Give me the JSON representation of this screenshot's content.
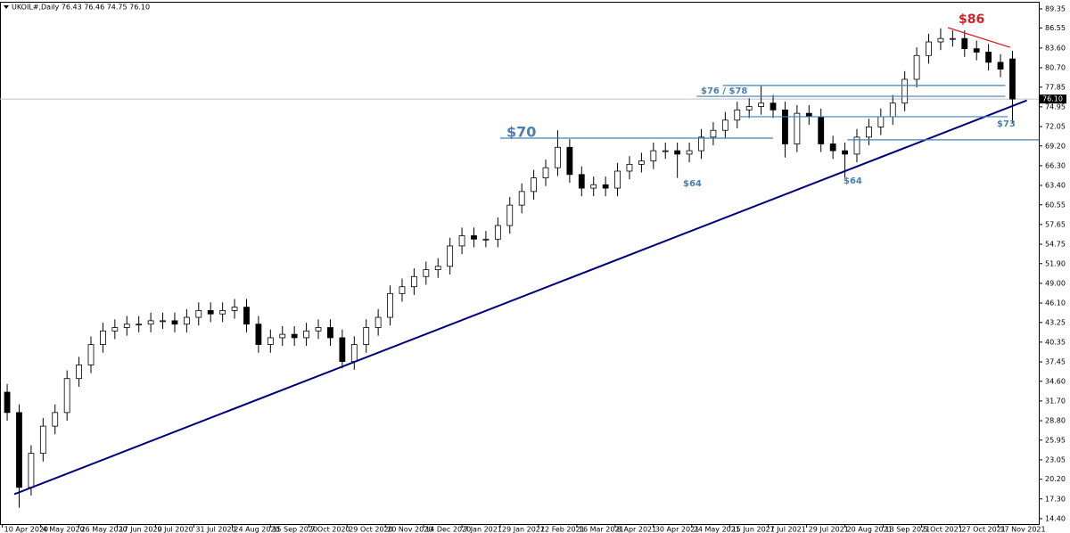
{
  "chart_data": {
    "type": "candlestick",
    "title": "UKOIL#,Daily  76.43 76.46 74.75 76.10",
    "xlim": [
      -1,
      433
    ],
    "ylim": [
      13.6,
      90.4
    ],
    "xticks": [
      {
        "value": 0,
        "label": "10 Apr 2020"
      },
      {
        "value": 16,
        "label": "4 May 2020"
      },
      {
        "value": 32,
        "label": "26 May 2020"
      },
      {
        "value": 48,
        "label": "17 Jun 2020"
      },
      {
        "value": 64,
        "label": "9 Jul 2020"
      },
      {
        "value": 80,
        "label": "31 Jul 2020"
      },
      {
        "value": 96,
        "label": "24 Aug 2020"
      },
      {
        "value": 112,
        "label": "15 Sep 2020"
      },
      {
        "value": 128,
        "label": "7 Oct 2020"
      },
      {
        "value": 144,
        "label": "29 Oct 2020"
      },
      {
        "value": 160,
        "label": "20 Nov 2020"
      },
      {
        "value": 176,
        "label": "14 Dec 2020"
      },
      {
        "value": 192,
        "label": "7 Jan 2021"
      },
      {
        "value": 208,
        "label": "29 Jan 2021"
      },
      {
        "value": 224,
        "label": "22 Feb 2021"
      },
      {
        "value": 240,
        "label": "16 Mar 2021"
      },
      {
        "value": 256,
        "label": "8 Apr 2021"
      },
      {
        "value": 272,
        "label": "30 Apr 2021"
      },
      {
        "value": 288,
        "label": "24 May 2021"
      },
      {
        "value": 304,
        "label": "15 Jun 2021"
      },
      {
        "value": 320,
        "label": "7 Jul 2021"
      },
      {
        "value": 336,
        "label": "29 Jul 2021"
      },
      {
        "value": 352,
        "label": "20 Aug 2021"
      },
      {
        "value": 368,
        "label": "13 Sep 2021"
      },
      {
        "value": 384,
        "label": "5 Oct 2021"
      },
      {
        "value": 400,
        "label": "27 Oct 2021"
      },
      {
        "value": 416,
        "label": "17 Nov 2021"
      }
    ],
    "yticks": [
      {
        "value": 89.35,
        "label": "89.35"
      },
      {
        "value": 86.55,
        "label": "86.55"
      },
      {
        "value": 83.6,
        "label": "83.60"
      },
      {
        "value": 80.7,
        "label": "80.70"
      },
      {
        "value": 77.85,
        "label": "77.85"
      },
      {
        "value": 74.95,
        "label": "74.95"
      },
      {
        "value": 72.05,
        "label": "72.05"
      },
      {
        "value": 69.2,
        "label": "69.20"
      },
      {
        "value": 66.3,
        "label": "66.30"
      },
      {
        "value": 63.4,
        "label": "63.40"
      },
      {
        "value": 60.55,
        "label": "60.55"
      },
      {
        "value": 57.65,
        "label": "57.65"
      },
      {
        "value": 54.75,
        "label": "54.75"
      },
      {
        "value": 51.9,
        "label": "51.90"
      },
      {
        "value": 49,
        "label": "49.00"
      },
      {
        "value": 46.1,
        "label": "46.10"
      },
      {
        "value": 43.25,
        "label": "43.25"
      },
      {
        "value": 40.35,
        "label": "40.35"
      },
      {
        "value": 37.45,
        "label": "37.45"
      },
      {
        "value": 34.6,
        "label": "34.60"
      },
      {
        "value": 31.7,
        "label": "31.70"
      },
      {
        "value": 28.8,
        "label": "28.80"
      },
      {
        "value": 25.95,
        "label": "25.95"
      },
      {
        "value": 23.05,
        "label": "23.05"
      },
      {
        "value": 20.2,
        "label": "20.20"
      },
      {
        "value": 17.3,
        "label": "17.30"
      },
      {
        "value": 14.4,
        "label": "14.40"
      }
    ],
    "last_price": {
      "value": 76.1,
      "label": "76.10"
    },
    "bull_color": "#ffffff",
    "bear_color": "#000000",
    "x": [
      2,
      7,
      12,
      17,
      22,
      27,
      32,
      37,
      42,
      47,
      52,
      57,
      62,
      67,
      72,
      77,
      82,
      87,
      92,
      97,
      102,
      107,
      112,
      117,
      122,
      127,
      132,
      137,
      142,
      147,
      152,
      157,
      162,
      167,
      172,
      177,
      182,
      187,
      192,
      197,
      202,
      207,
      212,
      217,
      222,
      227,
      232,
      237,
      242,
      247,
      252,
      257,
      262,
      267,
      272,
      277,
      282,
      287,
      292,
      297,
      302,
      307,
      312,
      317,
      322,
      327,
      332,
      337,
      342,
      347,
      352,
      357,
      362,
      367,
      372,
      377,
      382,
      387,
      392,
      397,
      402,
      407,
      412,
      417,
      422
    ],
    "open": [
      33,
      30,
      19,
      24,
      28,
      30,
      35,
      37,
      40,
      42,
      42.5,
      43,
      43,
      43.5,
      43.5,
      43,
      44,
      45,
      44.5,
      45,
      45.5,
      43,
      40,
      41,
      41.5,
      41,
      42,
      42.5,
      41,
      37.5,
      40,
      42.5,
      44,
      47.5,
      48.5,
      50,
      51,
      51.5,
      54.5,
      56,
      55.5,
      55.5,
      57.5,
      60.5,
      62.5,
      64.5,
      66,
      69,
      65,
      63,
      63.5,
      63,
      65.5,
      66.5,
      67,
      68.5,
      68.5,
      68,
      68.5,
      70.5,
      71.5,
      73,
      74.5,
      75,
      75.5,
      74.5,
      69.5,
      74,
      73.5,
      69.5,
      68.5,
      68,
      70.5,
      72,
      73.5,
      75.5,
      79,
      82.5,
      84.5,
      85,
      85,
      83.5,
      83,
      81.5,
      82
    ],
    "high": [
      34.2,
      31.2,
      25.2,
      29.2,
      31.2,
      36.2,
      38.2,
      41.2,
      43.2,
      43.7,
      44.2,
      44.2,
      44.7,
      44.7,
      44.7,
      45.2,
      46.2,
      46.2,
      46.2,
      46.7,
      46.7,
      44.2,
      42.2,
      42.7,
      42.7,
      43.2,
      43.7,
      43.7,
      42.2,
      41.2,
      43.7,
      45.2,
      48.7,
      49.7,
      51.2,
      52.2,
      52.7,
      55.7,
      57.2,
      57.2,
      56.7,
      58.7,
      61.7,
      63.7,
      65.7,
      67.2,
      71.5,
      70.2,
      66.2,
      64.7,
      64.7,
      66.7,
      67.7,
      68.2,
      69.7,
      69.7,
      69.7,
      69.7,
      71.7,
      72.7,
      74.2,
      75.7,
      76.2,
      78,
      76.7,
      75.7,
      75.2,
      75.2,
      74.7,
      70.7,
      69.7,
      71.7,
      73.2,
      74.7,
      76.7,
      80.2,
      83.7,
      85.7,
      86.5,
      86.2,
      86.2,
      84.7,
      84.2,
      82.7,
      83.2
    ],
    "low": [
      28.8,
      16,
      17.8,
      22.8,
      26.8,
      28.8,
      33.8,
      35.8,
      38.8,
      40.8,
      41.3,
      41.8,
      41.8,
      42.3,
      41.8,
      41.8,
      42.8,
      43.3,
      43.3,
      43.8,
      41.8,
      38.8,
      38.8,
      39.8,
      39.8,
      39.8,
      40.8,
      39.8,
      36.5,
      36.3,
      38.8,
      41.3,
      42.8,
      46.3,
      47.3,
      48.8,
      49.8,
      50.3,
      53.3,
      54.3,
      54.3,
      54.3,
      56.3,
      59.3,
      61.3,
      63.3,
      64.8,
      63.8,
      61.8,
      61.8,
      61.8,
      61.8,
      64.3,
      65.3,
      65.8,
      67.3,
      64.5,
      66.8,
      67.3,
      69.3,
      70.3,
      71.8,
      73.3,
      73.8,
      73.3,
      67.5,
      68.3,
      72.3,
      68.3,
      67.3,
      64.5,
      66.8,
      69.3,
      70.8,
      72.3,
      74.3,
      77.8,
      81.3,
      83.3,
      83.8,
      82.3,
      81.8,
      80.3,
      79.3,
      72.5
    ],
    "close": [
      30,
      19,
      24,
      28,
      30,
      35,
      37,
      40,
      42,
      42.5,
      43,
      43,
      43.5,
      43.5,
      43,
      44,
      45,
      44.5,
      45,
      45.5,
      43,
      40,
      41,
      41.5,
      41,
      42,
      42.5,
      41,
      37.5,
      40,
      42.5,
      44,
      47.5,
      48.5,
      50,
      51,
      51.5,
      54.5,
      56,
      55.5,
      55.5,
      57.5,
      60.5,
      62.5,
      64.5,
      66,
      69,
      65,
      63,
      63.5,
      63,
      65.5,
      66.5,
      67,
      68.5,
      68.5,
      68,
      68.5,
      70.5,
      71.5,
      73,
      74.5,
      75,
      75.5,
      74.5,
      69.5,
      74,
      73.5,
      69.5,
      68.5,
      68,
      70.5,
      72,
      73.5,
      75.5,
      79,
      82.5,
      84.5,
      85,
      85,
      83.5,
      83,
      81.5,
      80.5,
      76.1
    ],
    "lines": [
      {
        "color": "#00007f",
        "x": [
          5,
          428
        ],
        "y": [
          18,
          75.9
        ]
      },
      {
        "color": "#e02020",
        "x": [
          395,
          421
        ],
        "y": [
          86.6,
          83.7
        ]
      },
      {
        "color": "#4682b4",
        "x": [
          208,
          322
        ],
        "y": [
          70.35,
          70.35
        ]
      },
      {
        "color": "#4682b4",
        "x": [
          301,
          419
        ],
        "y": [
          78.1,
          78.1
        ]
      },
      {
        "color": "#4682b4",
        "x": [
          290,
          419
        ],
        "y": [
          76.5,
          76.5
        ]
      },
      {
        "color": "#4682b4",
        "x": [
          308,
          420
        ],
        "y": [
          73.5,
          73.5
        ]
      },
      {
        "color": "#4682b4",
        "x": [
          353,
          433
        ],
        "y": [
          70.1,
          70.1
        ]
      }
    ],
    "annotations": [
      {
        "text": "$86",
        "color": "#d0202a"
      },
      {
        "text": "$76 / $78",
        "color": "#4a7fb0"
      },
      {
        "text": "$70",
        "color": "#4a7fb0"
      },
      {
        "text": "$64",
        "color": "#4a7fb0"
      },
      {
        "text": "$64",
        "color": "#4a7fb0"
      },
      {
        "text": "$73",
        "color": "#4a7fb0"
      }
    ]
  }
}
